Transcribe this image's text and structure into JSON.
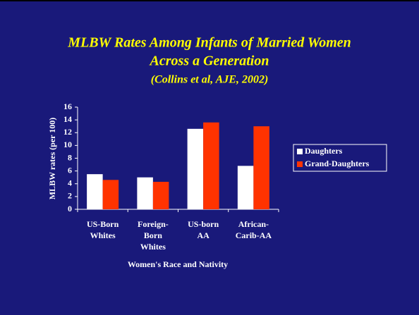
{
  "chart_data": {
    "type": "bar",
    "title": [
      "MLBW Rates Among Infants of Married Women",
      "Across a Generation"
    ],
    "subtitle": "(Collins et al, AJE, 2002)",
    "y_label": "MLBW rates (per 100)",
    "x_label": "Women's Race and Nativity",
    "categories": [
      [
        "US-Born",
        "Whites"
      ],
      [
        "Foreign-",
        "Born",
        "Whites"
      ],
      [
        "US-born",
        "AA"
      ],
      [
        "African-",
        "Carib-AA"
      ]
    ],
    "series": [
      {
        "name": "Daughters",
        "color": "#ffffff",
        "values": [
          5.5,
          5.0,
          12.6,
          6.8
        ]
      },
      {
        "name": "Grand-Daughters",
        "color": "#ff3300",
        "values": [
          4.6,
          4.3,
          13.6,
          13.0
        ]
      }
    ],
    "ylim": [
      0,
      16
    ],
    "yticks": [
      0,
      2,
      4,
      6,
      8,
      10,
      12,
      14,
      16
    ],
    "legend": "right",
    "grid": false
  }
}
